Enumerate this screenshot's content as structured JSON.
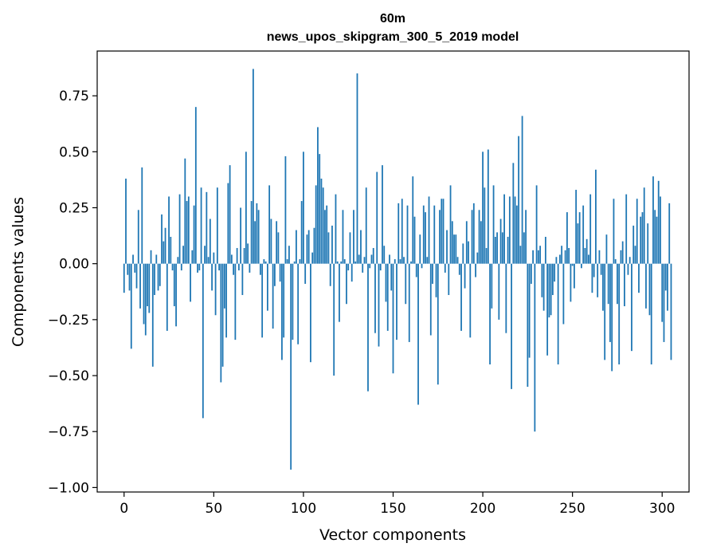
{
  "chart_data": {
    "type": "bar",
    "title": "60m",
    "subtitle": "news_upos_skipgram_300_5_2019 model",
    "xlabel": "Vector components",
    "ylabel": "Components values",
    "xlim": [
      -15,
      315
    ],
    "ylim": [
      -1.02,
      0.95
    ],
    "xticks": [
      0,
      50,
      100,
      150,
      200,
      250,
      300
    ],
    "yticks": [
      -1.0,
      -0.75,
      -0.5,
      -0.25,
      0.0,
      0.25,
      0.5,
      0.75
    ],
    "ytick_labels": [
      "−1.00",
      "−0.75",
      "−0.50",
      "−0.25",
      "0.00",
      "0.25",
      "0.50",
      "0.75"
    ],
    "xtick_labels": [
      "0",
      "50",
      "100",
      "150",
      "200",
      "250",
      "300"
    ],
    "bar_color": "#1f77b4",
    "grid": false,
    "values": [
      -0.13,
      0.38,
      -0.05,
      -0.12,
      -0.38,
      0.04,
      -0.04,
      -0.11,
      0.24,
      -0.2,
      0.43,
      -0.27,
      -0.32,
      -0.19,
      -0.22,
      0.06,
      -0.46,
      -0.14,
      0.04,
      -0.12,
      -0.1,
      0.22,
      0.1,
      0.16,
      -0.3,
      0.3,
      0.12,
      -0.03,
      -0.19,
      -0.28,
      0.03,
      0.31,
      -0.03,
      0.08,
      0.47,
      0.28,
      0.3,
      -0.17,
      0.06,
      0.26,
      0.7,
      -0.04,
      -0.03,
      0.34,
      -0.69,
      0.08,
      0.32,
      0.03,
      0.2,
      -0.12,
      0.05,
      -0.23,
      0.34,
      -0.03,
      -0.53,
      -0.46,
      -0.2,
      -0.33,
      0.36,
      0.44,
      0.04,
      -0.05,
      -0.34,
      0.07,
      -0.03,
      0.25,
      -0.14,
      0.07,
      0.5,
      0.09,
      -0.04,
      0.28,
      0.87,
      0.19,
      0.27,
      0.24,
      -0.05,
      -0.33,
      0.02,
      0.01,
      -0.21,
      0.35,
      0.2,
      -0.29,
      -0.1,
      0.19,
      0.14,
      -0.08,
      -0.43,
      -0.33,
      0.48,
      0.02,
      0.08,
      -0.92,
      -0.34,
      0.01,
      0.15,
      -0.36,
      0.02,
      0.28,
      0.5,
      -0.09,
      0.13,
      0.15,
      -0.44,
      0.05,
      0.16,
      0.35,
      0.61,
      0.49,
      0.38,
      0.34,
      0.24,
      0.26,
      0.14,
      -0.1,
      0.17,
      -0.5,
      0.31,
      0.01,
      -0.26,
      0.01,
      0.24,
      0.02,
      -0.18,
      -0.03,
      0.14,
      -0.08,
      0.24,
      0.01,
      0.85,
      0.04,
      0.15,
      -0.04,
      0.03,
      0.34,
      -0.57,
      -0.02,
      0.04,
      0.07,
      -0.31,
      0.41,
      -0.37,
      -0.03,
      0.44,
      0.08,
      -0.17,
      -0.3,
      0.04,
      -0.12,
      -0.49,
      0.02,
      -0.34,
      0.27,
      0.02,
      0.29,
      0.03,
      -0.18,
      0.26,
      -0.35,
      0.01,
      0.39,
      0.21,
      -0.06,
      -0.63,
      0.13,
      -0.02,
      0.26,
      0.23,
      0.03,
      0.3,
      -0.32,
      -0.09,
      0.26,
      -0.15,
      -0.54,
      0.24,
      0.29,
      0.29,
      -0.04,
      0.15,
      -0.14,
      0.35,
      0.19,
      0.13,
      0.13,
      0.03,
      -0.05,
      -0.3,
      0.09,
      -0.11,
      0.19,
      0.1,
      -0.33,
      0.24,
      0.27,
      -0.06,
      0.05,
      0.24,
      0.19,
      0.5,
      0.34,
      0.07,
      0.51,
      -0.45,
      -0.2,
      0.35,
      0.12,
      0.14,
      -0.25,
      0.2,
      0.14,
      0.31,
      -0.31,
      0.12,
      0.3,
      -0.56,
      0.45,
      0.3,
      0.26,
      0.57,
      0.08,
      0.66,
      0.14,
      0.24,
      -0.55,
      -0.42,
      -0.09,
      0.06,
      -0.75,
      0.35,
      0.06,
      0.08,
      -0.15,
      -0.21,
      0.12,
      -0.41,
      -0.24,
      -0.23,
      -0.14,
      -0.08,
      0.03,
      -0.45,
      0.04,
      0.08,
      -0.27,
      0.06,
      0.23,
      0.07,
      -0.17,
      -0.01,
      -0.11,
      0.33,
      0.18,
      0.23,
      -0.02,
      0.26,
      0.07,
      0.11,
      0.04,
      0.31,
      -0.13,
      -0.06,
      0.42,
      -0.15,
      0.06,
      -0.05,
      -0.21,
      -0.43,
      0.13,
      -0.18,
      -0.35,
      -0.48,
      0.29,
      0.02,
      -0.18,
      -0.45,
      0.06,
      0.1,
      -0.19,
      0.31,
      -0.05,
      0.03,
      -0.39,
      0.17,
      0.08,
      0.29,
      -0.13,
      0.21,
      0.23,
      0.34,
      -0.2,
      0.18,
      -0.23,
      -0.45,
      0.39,
      0.24,
      0.21,
      0.37,
      0.3,
      -0.26,
      -0.35,
      -0.12,
      -0.21,
      0.27,
      -0.43
    ]
  }
}
